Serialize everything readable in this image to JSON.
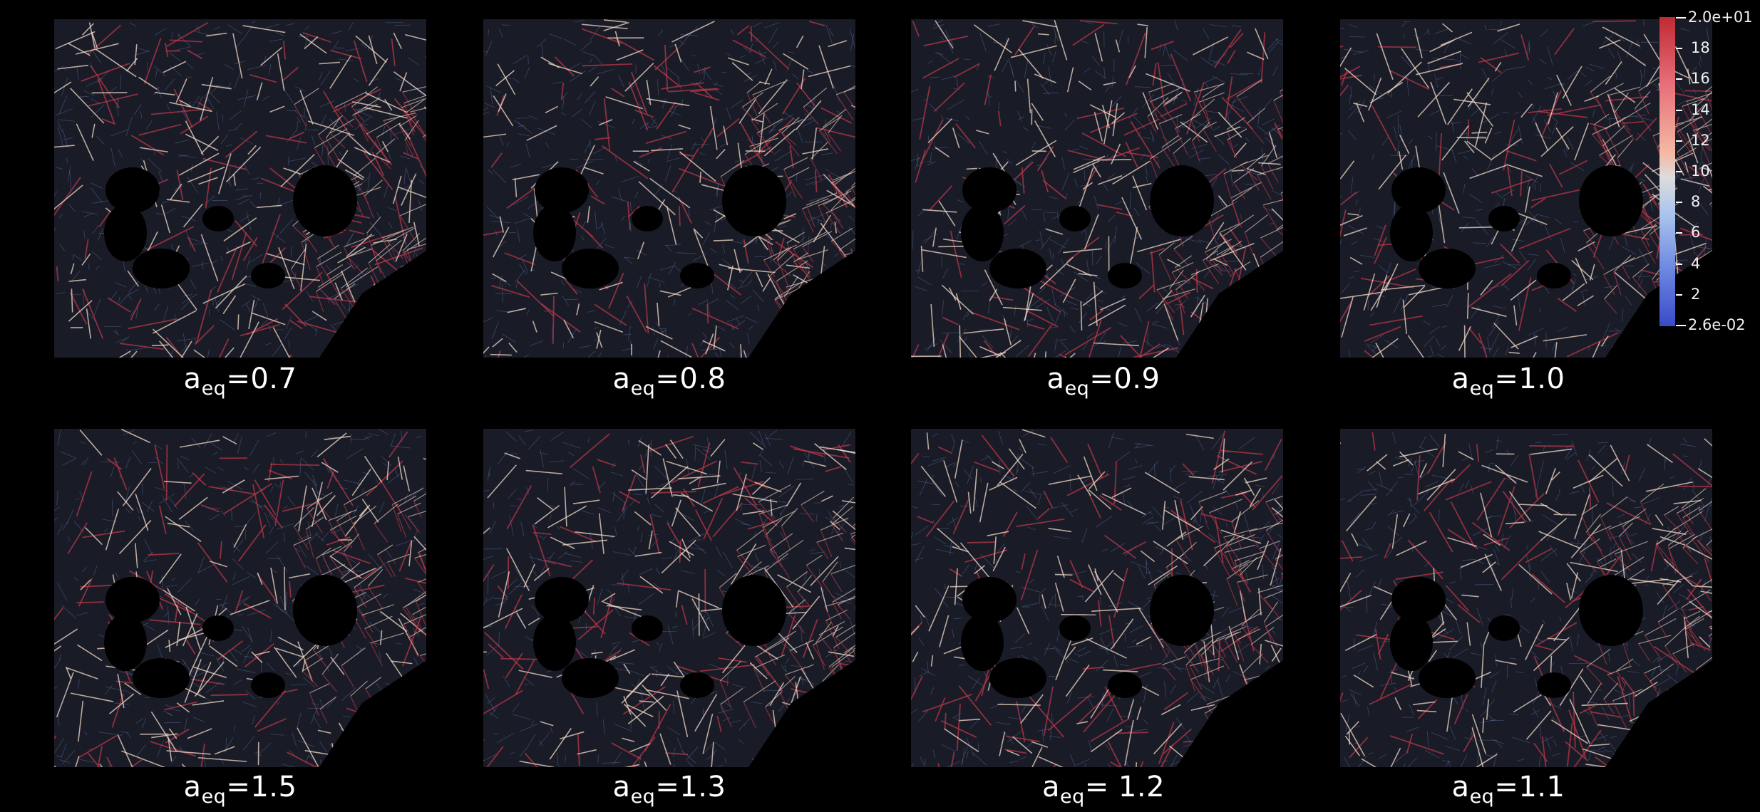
{
  "panels": [
    {
      "prefix": "a",
      "sub": "eq",
      "value": "=0.7"
    },
    {
      "prefix": "a",
      "sub": "eq",
      "value": "=0.8"
    },
    {
      "prefix": "a",
      "sub": "eq",
      "value": "=0.9"
    },
    {
      "prefix": "a",
      "sub": "eq",
      "value": "=1.0"
    },
    {
      "prefix": "a",
      "sub": "eq",
      "value": "=1.5"
    },
    {
      "prefix": "a",
      "sub": "eq",
      "value": "=1.3"
    },
    {
      "prefix": "a",
      "sub": "eq",
      "value": "= 1.2"
    },
    {
      "prefix": "a",
      "sub": "eq",
      "value": "=1.1"
    }
  ],
  "colorbar": {
    "max_label": "2.0e+01",
    "min_label": "2.6e-02",
    "tick_labels": [
      "18",
      "16",
      "14",
      "12",
      "10",
      "8",
      "6",
      "4",
      "2"
    ],
    "colors": {
      "high": "#c02a34",
      "mid": "#dcdcdc",
      "low": "#3a4ac8"
    }
  },
  "map_colors": {
    "background": "#191c27",
    "road_light": "#f3d9c8",
    "road_red": "#c2384a",
    "road_blue": "#7d93d6",
    "water": "#000000"
  }
}
